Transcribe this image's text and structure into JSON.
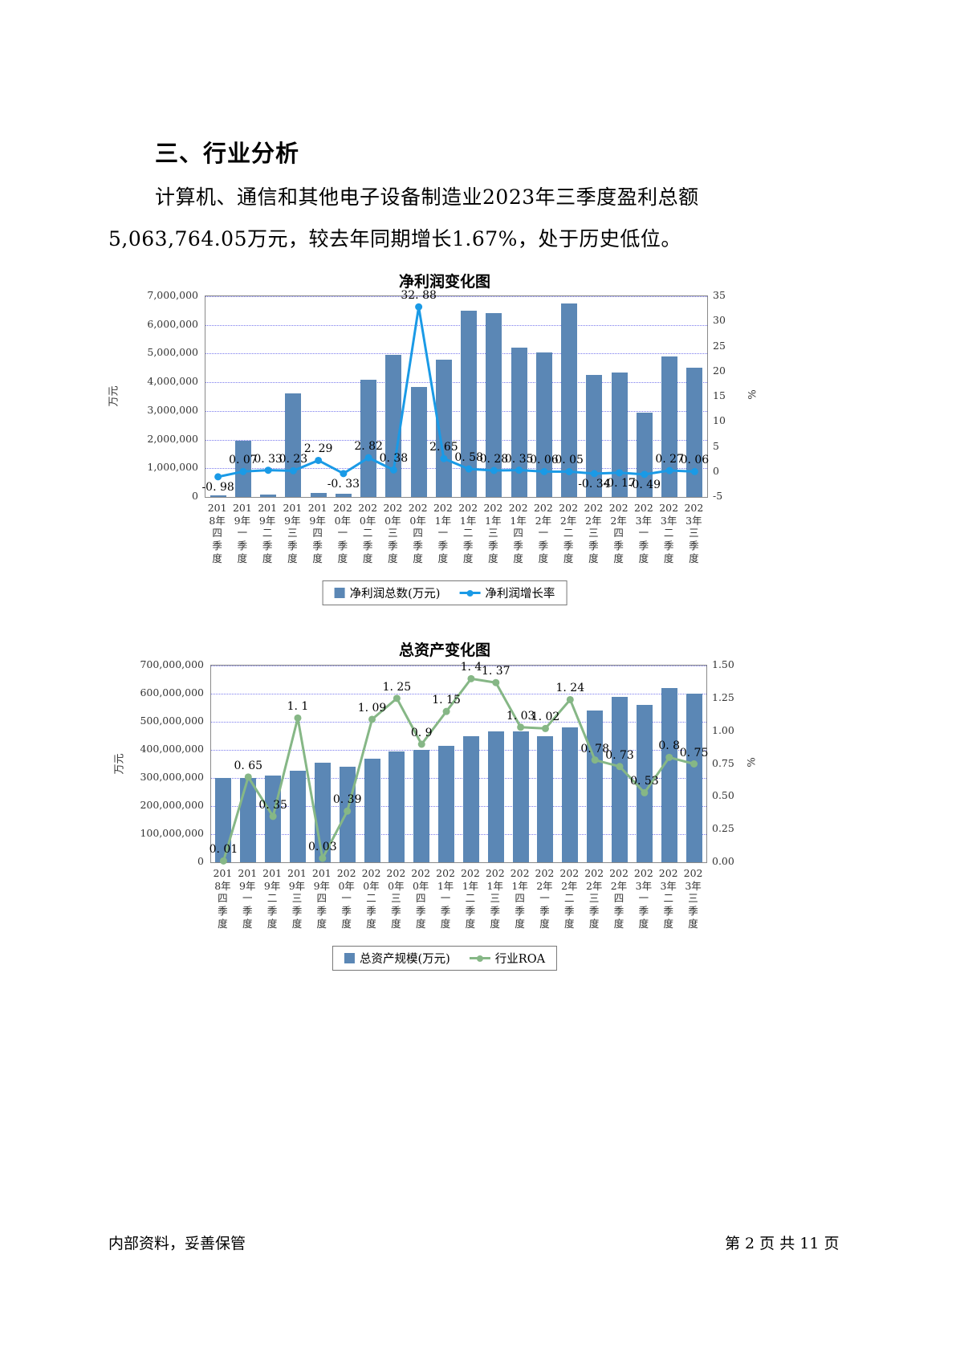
{
  "page": {
    "heading": "三、行业分析",
    "paragraph_line1": "计算机、通信和其他电子设备制造业2023年三季度盈利总额",
    "paragraph_line2": "5,063,764.05万元，较去年同期增长1.67%，处于历史低位。",
    "footer_left": "内部资料，妥善保管",
    "footer_right": "第 2 页  共 11 页"
  },
  "chart_data": [
    {
      "type": "bar+line combo",
      "title": "净利润变化图",
      "categories": [
        "2018年四季度",
        "2019年一季度",
        "2019年二季度",
        "2019年三季度",
        "2019年四季度",
        "2020年一季度",
        "2020年二季度",
        "2020年三季度",
        "2020年四季度",
        "2021年一季度",
        "2021年二季度",
        "2021年三季度",
        "2021年四季度",
        "2022年一季度",
        "2022年二季度",
        "2022年三季度",
        "2022年四季度",
        "2023年一季度",
        "2023年二季度",
        "2023年三季度"
      ],
      "series": [
        {
          "name": "净利润总数(万元)",
          "type": "bar",
          "color": "#5b87b5",
          "values": [
            60000,
            1950000,
            80000,
            3600000,
            150000,
            120000,
            4100000,
            4950000,
            3850000,
            4800000,
            6500000,
            6400000,
            5200000,
            5050000,
            6750000,
            4250000,
            4350000,
            2950000,
            4900000,
            4500000
          ]
        },
        {
          "name": "净利润增长率",
          "type": "line",
          "color": "#1a9ae6",
          "axis": "right",
          "values": [
            -0.98,
            0.07,
            0.33,
            0.23,
            2.29,
            -0.33,
            2.82,
            0.38,
            32.88,
            2.65,
            0.58,
            0.28,
            0.35,
            0.06,
            0.05,
            -0.34,
            -0.17,
            -0.49,
            0.27,
            0.06
          ]
        }
      ],
      "left_axis": {
        "title": "万元",
        "min": 0,
        "max": 7000000,
        "ticks": [
          "0",
          "1,000,000",
          "2,000,000",
          "3,000,000",
          "4,000,000",
          "5,000,000",
          "6,000,000",
          "7,000,000"
        ]
      },
      "right_axis": {
        "title": "%",
        "min": -5,
        "max": 35,
        "ticks": [
          "-5",
          "0",
          "5",
          "10",
          "15",
          "20",
          "25",
          "30",
          "35"
        ]
      },
      "legend": [
        "净利润总数(万元)",
        "净利润增长率"
      ],
      "grid": "dotted horizontal",
      "legend_position": "bottom center"
    },
    {
      "type": "bar+line combo",
      "title": "总资产变化图",
      "categories": [
        "2018年四季度",
        "2019年一季度",
        "2019年二季度",
        "2019年三季度",
        "2019年四季度",
        "2020年一季度",
        "2020年二季度",
        "2020年三季度",
        "2020年四季度",
        "2021年一季度",
        "2021年二季度",
        "2021年三季度",
        "2021年四季度",
        "2022年一季度",
        "2022年二季度",
        "2022年三季度",
        "2022年四季度",
        "2023年一季度",
        "2023年二季度",
        "2023年三季度"
      ],
      "series": [
        {
          "name": "总资产规模(万元)",
          "type": "bar",
          "color": "#5b87b5",
          "values": [
            300000000,
            300000000,
            310000000,
            325000000,
            355000000,
            340000000,
            370000000,
            395000000,
            400000000,
            415000000,
            450000000,
            465000000,
            465000000,
            450000000,
            480000000,
            540000000,
            590000000,
            560000000,
            620000000,
            600000000
          ]
        },
        {
          "name": "行业ROA",
          "type": "line",
          "color": "#86b786",
          "axis": "right",
          "values": [
            0.01,
            0.65,
            0.35,
            1.1,
            0.03,
            0.39,
            1.09,
            1.25,
            0.9,
            1.15,
            1.4,
            1.37,
            1.03,
            1.02,
            1.24,
            0.78,
            0.73,
            0.53,
            0.8,
            0.75
          ]
        }
      ],
      "left_axis": {
        "title": "万元",
        "min": 0,
        "max": 700000000,
        "ticks": [
          "0",
          "100,000,000",
          "200,000,000",
          "300,000,000",
          "400,000,000",
          "500,000,000",
          "600,000,000",
          "700,000,000"
        ]
      },
      "right_axis": {
        "title": "%",
        "min": 0,
        "max": 1.5,
        "ticks": [
          "0.00",
          "0.25",
          "0.50",
          "0.75",
          "1.00",
          "1.25",
          "1.50"
        ]
      },
      "legend": [
        "总资产规模(万元)",
        "行业ROA"
      ],
      "grid": "dotted horizontal",
      "legend_position": "bottom center"
    }
  ]
}
